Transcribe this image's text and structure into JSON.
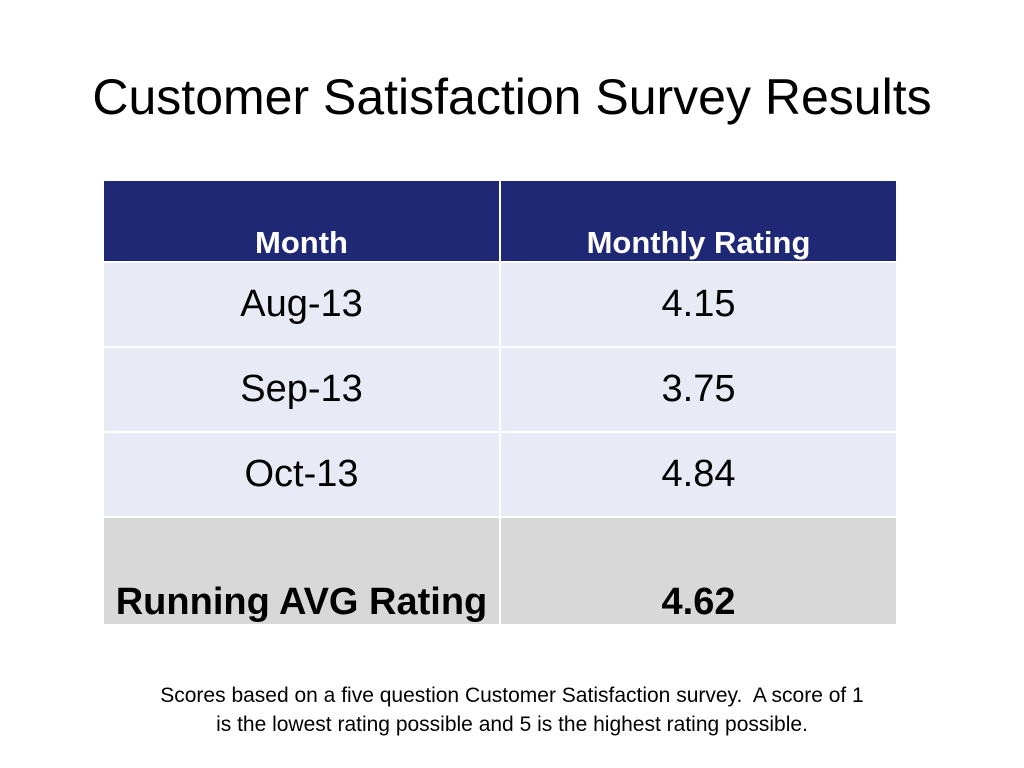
{
  "slide": {
    "title": "Customer Satisfaction Survey Results",
    "table": {
      "headers": [
        "Month",
        "Monthly Rating"
      ],
      "rows": [
        {
          "month": "Aug-13",
          "rating": "4.15"
        },
        {
          "month": "Sep-13",
          "rating": "3.75"
        },
        {
          "month": "Oct-13",
          "rating": "4.84"
        }
      ],
      "summary": {
        "label": "Running AVG Rating",
        "value": "4.62"
      }
    },
    "footnote": {
      "line1": "Scores based on a five question Customer Satisfaction survey.  A score of 1",
      "line2": "is the lowest rating possible and 5 is the highest rating possible."
    },
    "colors": {
      "header_bg": "#1e2875",
      "row_bg": "#e8ebf5",
      "summary_bg": "#d8d8d8"
    }
  }
}
